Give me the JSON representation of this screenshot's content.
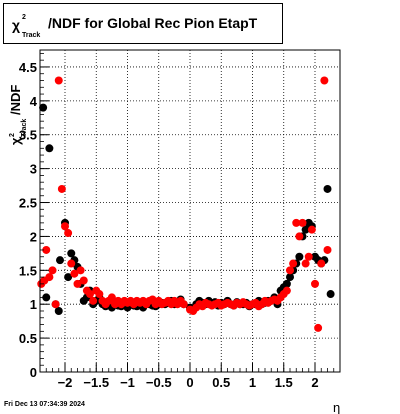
{
  "chart_data": {
    "type": "scatter",
    "title": "χ²/NDF for Global Rec Pion EtapT",
    "title_parts": {
      "chi": "χ",
      "sup": "2",
      "sub": "Track",
      "rest": "/NDF for Global Rec Pion EtapT"
    },
    "xlabel": "η",
    "ylabel_parts": {
      "chi": "χ",
      "sup": "2",
      "sub": "Track",
      "rest": "/NDF"
    },
    "xlim": [
      -2.4,
      2.4
    ],
    "ylim": [
      0,
      4.75
    ],
    "x_ticks": [
      -2,
      -1.5,
      -1,
      -0.5,
      0,
      0.5,
      1,
      1.5,
      2
    ],
    "x_tick_labels": [
      "−2",
      "−1.5",
      "−1",
      "−0.5",
      "0",
      "0.5",
      "1",
      "1.5",
      "2"
    ],
    "y_ticks": [
      0,
      0.5,
      1,
      1.5,
      2,
      2.5,
      3,
      3.5,
      4,
      4.5
    ],
    "y_tick_labels": [
      "0",
      "0.5",
      "1",
      "1.5",
      "2",
      "2.5",
      "3",
      "3.5",
      "4",
      "4.5"
    ],
    "grid": true,
    "series": [
      {
        "color": "#000000",
        "points": [
          [
            -2.35,
            3.9
          ],
          [
            -2.3,
            1.1
          ],
          [
            -2.25,
            3.3
          ],
          [
            -2.15,
            1.0
          ],
          [
            -2.1,
            0.9
          ],
          [
            -2.08,
            1.65
          ],
          [
            -2.0,
            2.2
          ],
          [
            -1.95,
            1.4
          ],
          [
            -1.9,
            1.75
          ],
          [
            -1.85,
            1.65
          ],
          [
            -1.8,
            1.55
          ],
          [
            -1.75,
            1.3
          ],
          [
            -1.7,
            1.05
          ],
          [
            -1.65,
            1.1
          ],
          [
            -1.6,
            1.2
          ],
          [
            -1.55,
            1.0
          ],
          [
            -1.5,
            1.05
          ],
          [
            -1.45,
            1.1
          ],
          [
            -1.4,
            1.0
          ],
          [
            -1.35,
            0.97
          ],
          [
            -1.3,
            1.0
          ],
          [
            -1.25,
            0.95
          ],
          [
            -1.2,
            1.0
          ],
          [
            -1.15,
            0.98
          ],
          [
            -1.1,
            0.97
          ],
          [
            -1.05,
            1.0
          ],
          [
            -1.0,
            0.95
          ],
          [
            -0.95,
            1.02
          ],
          [
            -0.9,
            0.98
          ],
          [
            -0.85,
            0.97
          ],
          [
            -0.8,
            1.0
          ],
          [
            -0.75,
            0.95
          ],
          [
            -0.7,
            1.0
          ],
          [
            -0.65,
            1.0
          ],
          [
            -0.6,
            0.98
          ],
          [
            -0.55,
            0.97
          ],
          [
            -0.5,
            1.0
          ],
          [
            -0.45,
            1.02
          ],
          [
            -0.4,
            1.0
          ],
          [
            -0.35,
            1.02
          ],
          [
            -0.3,
            1.05
          ],
          [
            -0.25,
            1.0
          ],
          [
            -0.2,
            1.03
          ],
          [
            -0.15,
            1.07
          ],
          [
            -0.1,
            1.0
          ],
          [
            0.0,
            0.95
          ],
          [
            0.1,
            1.0
          ],
          [
            0.15,
            1.05
          ],
          [
            0.2,
            1.02
          ],
          [
            0.25,
            1.0
          ],
          [
            0.3,
            1.05
          ],
          [
            0.35,
            1.0
          ],
          [
            0.4,
            1.03
          ],
          [
            0.45,
            0.98
          ],
          [
            0.5,
            1.02
          ],
          [
            0.55,
            1.0
          ],
          [
            0.6,
            1.05
          ],
          [
            0.65,
            1.0
          ],
          [
            0.7,
            0.98
          ],
          [
            0.75,
            1.03
          ],
          [
            0.8,
            1.0
          ],
          [
            0.85,
            1.0
          ],
          [
            0.9,
            1.02
          ],
          [
            0.95,
            0.97
          ],
          [
            1.0,
            1.0
          ],
          [
            1.05,
            1.0
          ],
          [
            1.1,
            1.05
          ],
          [
            1.15,
            1.0
          ],
          [
            1.2,
            1.02
          ],
          [
            1.25,
            1.05
          ],
          [
            1.3,
            1.05
          ],
          [
            1.35,
            1.1
          ],
          [
            1.4,
            1.0
          ],
          [
            1.45,
            1.2
          ],
          [
            1.5,
            1.25
          ],
          [
            1.55,
            1.3
          ],
          [
            1.6,
            1.4
          ],
          [
            1.65,
            1.5
          ],
          [
            1.7,
            1.6
          ],
          [
            1.75,
            1.7
          ],
          [
            1.8,
            2.0
          ],
          [
            1.85,
            2.1
          ],
          [
            1.9,
            2.2
          ],
          [
            1.95,
            2.15
          ],
          [
            2.0,
            1.7
          ],
          [
            2.05,
            1.65
          ],
          [
            2.1,
            1.6
          ],
          [
            2.15,
            1.65
          ],
          [
            2.2,
            2.7
          ],
          [
            2.25,
            1.15
          ]
        ]
      },
      {
        "color": "#ff0000",
        "points": [
          [
            -2.38,
            1.3
          ],
          [
            -2.33,
            1.35
          ],
          [
            -2.3,
            1.8
          ],
          [
            -2.25,
            1.4
          ],
          [
            -2.2,
            1.5
          ],
          [
            -2.15,
            1.0
          ],
          [
            -2.1,
            4.3
          ],
          [
            -2.05,
            2.7
          ],
          [
            -2.0,
            2.15
          ],
          [
            -1.95,
            2.05
          ],
          [
            -1.9,
            1.6
          ],
          [
            -1.85,
            1.45
          ],
          [
            -1.8,
            1.3
          ],
          [
            -1.75,
            1.5
          ],
          [
            -1.7,
            1.35
          ],
          [
            -1.65,
            1.2
          ],
          [
            -1.6,
            1.15
          ],
          [
            -1.55,
            1.05
          ],
          [
            -1.5,
            1.2
          ],
          [
            -1.45,
            1.15
          ],
          [
            -1.4,
            1.05
          ],
          [
            -1.35,
            1.0
          ],
          [
            -1.3,
            1.05
          ],
          [
            -1.25,
            1.1
          ],
          [
            -1.2,
            1.0
          ],
          [
            -1.15,
            1.05
          ],
          [
            -1.1,
            1.0
          ],
          [
            -1.05,
            1.05
          ],
          [
            -1.0,
            1.02
          ],
          [
            -0.95,
            1.05
          ],
          [
            -0.9,
            1.0
          ],
          [
            -0.85,
            1.05
          ],
          [
            -0.8,
            1.02
          ],
          [
            -0.75,
            1.05
          ],
          [
            -0.7,
            1.0
          ],
          [
            -0.65,
            1.05
          ],
          [
            -0.6,
            1.07
          ],
          [
            -0.55,
            1.0
          ],
          [
            -0.5,
            1.05
          ],
          [
            -0.45,
            1.0
          ],
          [
            -0.4,
            1.02
          ],
          [
            -0.35,
            1.05
          ],
          [
            -0.3,
            1.0
          ],
          [
            -0.25,
            1.05
          ],
          [
            -0.2,
            1.0
          ],
          [
            -0.15,
            1.05
          ],
          [
            -0.1,
            1.0
          ],
          [
            0.0,
            0.92
          ],
          [
            0.05,
            0.9
          ],
          [
            0.1,
            0.95
          ],
          [
            0.15,
            1.0
          ],
          [
            0.2,
            0.97
          ],
          [
            0.25,
            1.02
          ],
          [
            0.3,
            1.0
          ],
          [
            0.35,
            0.98
          ],
          [
            0.4,
            1.0
          ],
          [
            0.45,
            1.02
          ],
          [
            0.5,
            0.98
          ],
          [
            0.55,
            1.0
          ],
          [
            0.6,
            1.02
          ],
          [
            0.65,
            1.0
          ],
          [
            0.7,
            0.98
          ],
          [
            0.75,
            1.02
          ],
          [
            0.8,
            1.0
          ],
          [
            0.85,
            1.03
          ],
          [
            0.9,
            1.0
          ],
          [
            0.95,
            0.98
          ],
          [
            1.0,
            1.0
          ],
          [
            1.05,
            1.02
          ],
          [
            1.1,
            0.97
          ],
          [
            1.15,
            1.0
          ],
          [
            1.2,
            1.05
          ],
          [
            1.25,
            1.02
          ],
          [
            1.3,
            1.05
          ],
          [
            1.35,
            1.07
          ],
          [
            1.4,
            1.05
          ],
          [
            1.45,
            1.1
          ],
          [
            1.5,
            1.15
          ],
          [
            1.55,
            1.2
          ],
          [
            1.6,
            1.5
          ],
          [
            1.65,
            1.6
          ],
          [
            1.7,
            2.2
          ],
          [
            1.75,
            2.0
          ],
          [
            1.8,
            2.2
          ],
          [
            1.85,
            1.6
          ],
          [
            1.9,
            1.7
          ],
          [
            1.95,
            2.1
          ],
          [
            2.0,
            1.3
          ],
          [
            2.05,
            0.65
          ],
          [
            2.1,
            1.6
          ],
          [
            2.15,
            4.3
          ],
          [
            2.2,
            1.8
          ]
        ]
      }
    ]
  },
  "footer": {
    "timestamp": "Fri Dec 13 07:34:39 2024"
  }
}
